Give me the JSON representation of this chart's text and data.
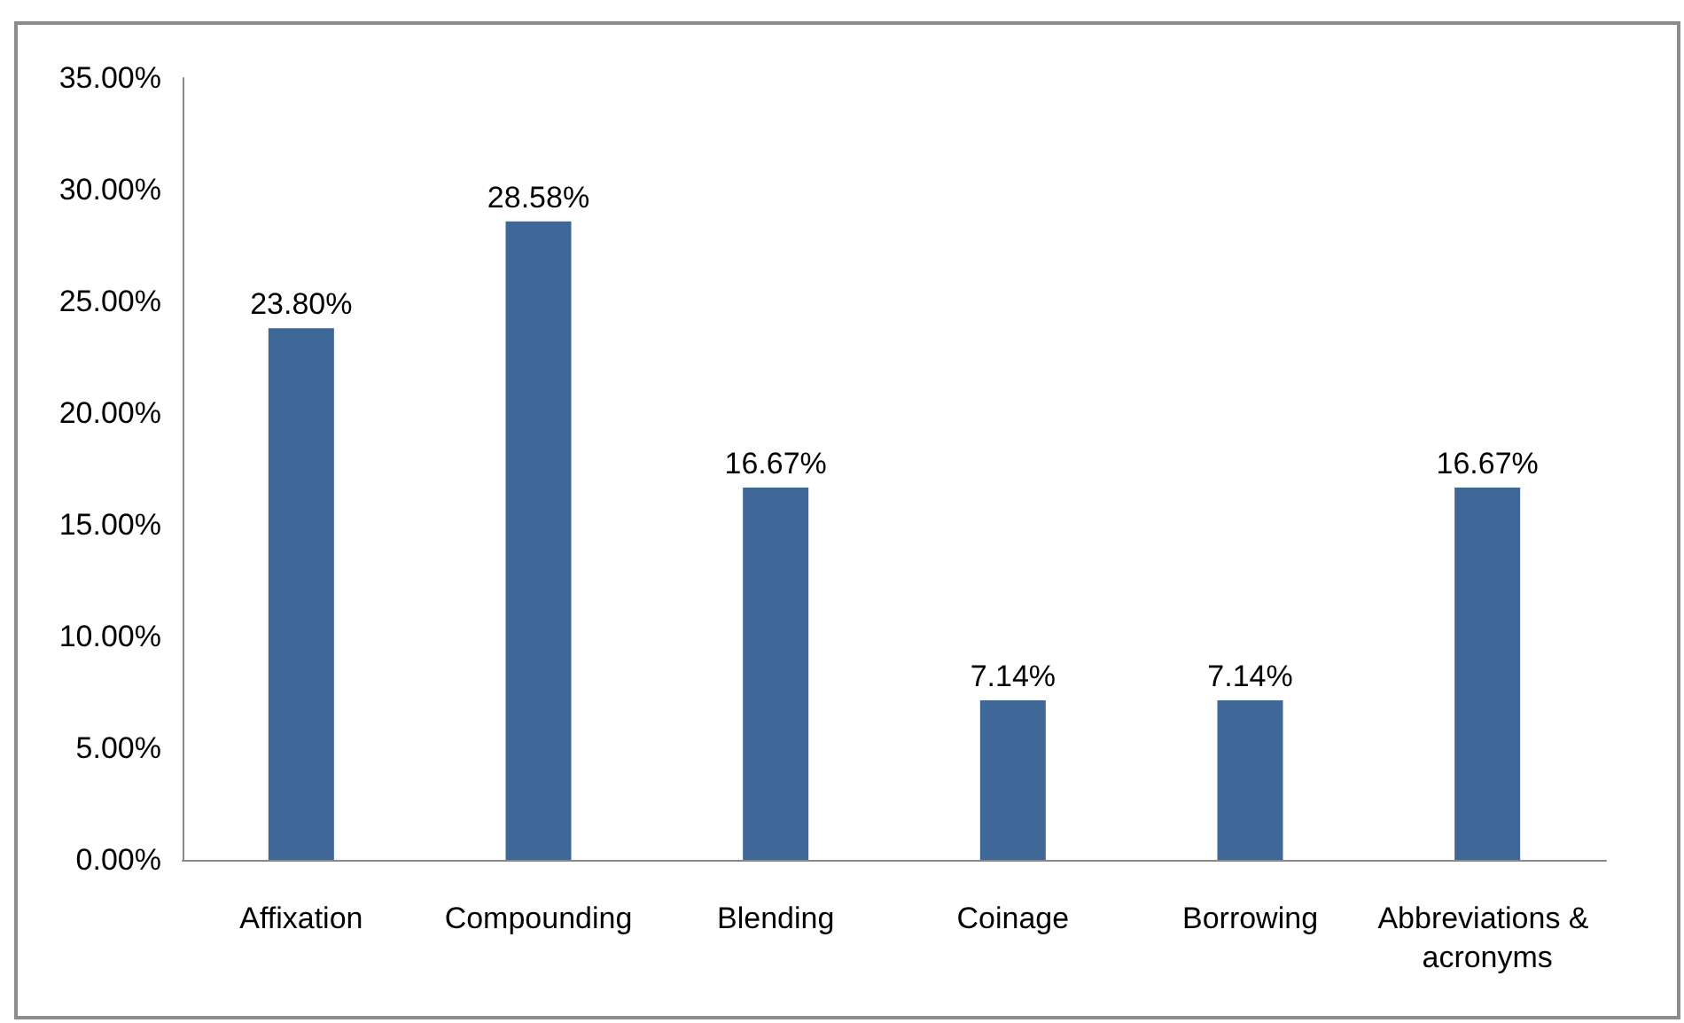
{
  "chart_data": {
    "type": "bar",
    "categories": [
      "Affixation",
      "Compounding",
      "Blending",
      "Coinage",
      "Borrowing",
      "Abbreviations & acronyms"
    ],
    "values": [
      23.8,
      28.58,
      16.67,
      7.14,
      7.14,
      16.67
    ],
    "value_labels": [
      "23.80%",
      "28.58%",
      "16.67%",
      "7.14%",
      "7.14%",
      "16.67%"
    ],
    "color": "#3f6797",
    "ylim": [
      0,
      35
    ],
    "yticks": [
      {
        "value": 0,
        "label": "0.00%"
      },
      {
        "value": 5,
        "label": "5.00%"
      },
      {
        "value": 10,
        "label": "10.00%"
      },
      {
        "value": 15,
        "label": "15.00%"
      },
      {
        "value": 20,
        "label": "20.00%"
      },
      {
        "value": 25,
        "label": "25.00%"
      },
      {
        "value": 30,
        "label": "30.00%"
      },
      {
        "value": 35,
        "label": "35.00%"
      }
    ],
    "grid": false
  }
}
